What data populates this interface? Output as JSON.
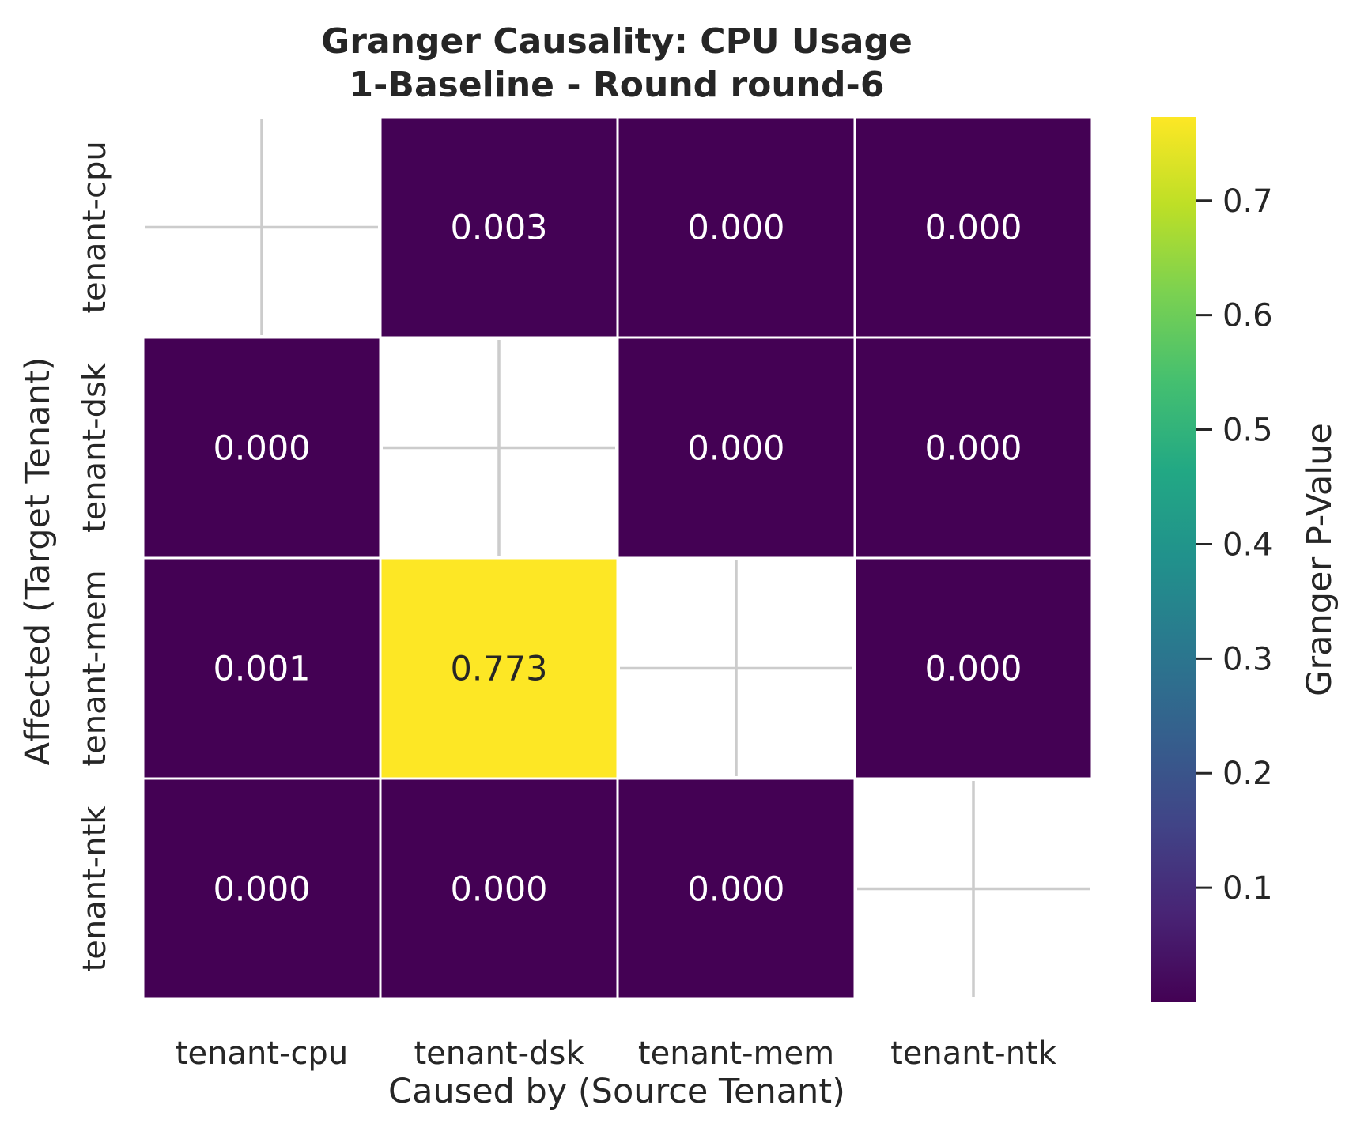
{
  "chart_data": {
    "type": "heatmap",
    "title_line1": "Granger Causality: CPU Usage",
    "title_line2": "1-Baseline - Round round-6",
    "xlabel": "Caused by (Source Tenant)",
    "ylabel": "Affected (Target Tenant)",
    "x_categories": [
      "tenant-cpu",
      "tenant-dsk",
      "tenant-mem",
      "tenant-ntk"
    ],
    "y_categories": [
      "tenant-cpu",
      "tenant-dsk",
      "tenant-mem",
      "tenant-ntk"
    ],
    "values": [
      [
        null,
        0.003,
        0.0,
        0.0
      ],
      [
        0.0,
        null,
        0.0,
        0.0
      ],
      [
        0.001,
        0.773,
        null,
        0.0
      ],
      [
        0.0,
        0.0,
        0.0,
        null
      ]
    ],
    "value_labels": [
      [
        "",
        "0.003",
        "0.000",
        "0.000"
      ],
      [
        "0.000",
        "",
        "0.000",
        "0.000"
      ],
      [
        "0.001",
        "0.773",
        "",
        "0.000"
      ],
      [
        "0.000",
        "0.000",
        "0.000",
        ""
      ]
    ],
    "colorbar": {
      "label": "Granger P-Value",
      "colormap": "viridis",
      "vmin": 0.0,
      "vmax": 0.773,
      "ticks": [
        0.1,
        0.2,
        0.3,
        0.4,
        0.5,
        0.6,
        0.7
      ],
      "tick_labels": [
        "0.1",
        "0.2",
        "0.3",
        "0.4",
        "0.5",
        "0.6",
        "0.7"
      ]
    },
    "colors": {
      "low": "#440154",
      "high": "#fde725",
      "cell_border": "#ffffff",
      "empty_cross": "#cccccc"
    }
  }
}
